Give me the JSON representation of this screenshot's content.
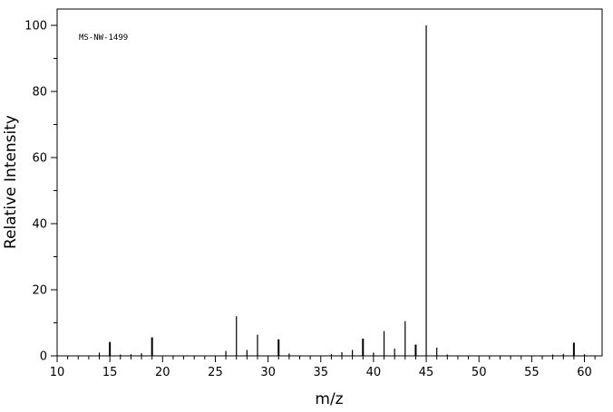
{
  "chart_data": {
    "type": "bar",
    "annotation": "MS-NW-1499",
    "xlabel": "m/z",
    "ylabel": "Relative Intensity",
    "xlim": [
      10,
      62
    ],
    "ylim": [
      0,
      104
    ],
    "x_ticks": [
      10,
      15,
      20,
      25,
      30,
      35,
      40,
      45,
      50,
      55,
      60
    ],
    "y_ticks": [
      0,
      20,
      40,
      60,
      80,
      100
    ],
    "grid": false,
    "peaks": [
      {
        "mz": 14,
        "intensity": 1.0
      },
      {
        "mz": 15,
        "intensity": 4.2
      },
      {
        "mz": 16,
        "intensity": 0.4
      },
      {
        "mz": 17,
        "intensity": 0.5
      },
      {
        "mz": 18,
        "intensity": 0.8
      },
      {
        "mz": 19,
        "intensity": 5.6
      },
      {
        "mz": 26,
        "intensity": 1.5
      },
      {
        "mz": 27,
        "intensity": 12.0
      },
      {
        "mz": 28,
        "intensity": 1.8
      },
      {
        "mz": 29,
        "intensity": 6.4
      },
      {
        "mz": 31,
        "intensity": 5.0
      },
      {
        "mz": 32,
        "intensity": 0.7
      },
      {
        "mz": 36,
        "intensity": 0.5
      },
      {
        "mz": 37,
        "intensity": 1.1
      },
      {
        "mz": 38,
        "intensity": 1.8
      },
      {
        "mz": 39,
        "intensity": 5.2
      },
      {
        "mz": 40,
        "intensity": 1.0
      },
      {
        "mz": 41,
        "intensity": 7.5
      },
      {
        "mz": 42,
        "intensity": 2.2
      },
      {
        "mz": 43,
        "intensity": 10.5
      },
      {
        "mz": 44,
        "intensity": 3.4
      },
      {
        "mz": 45,
        "intensity": 100
      },
      {
        "mz": 46,
        "intensity": 2.5
      },
      {
        "mz": 47,
        "intensity": 0.4
      },
      {
        "mz": 57,
        "intensity": 0.4
      },
      {
        "mz": 58,
        "intensity": 0.6
      },
      {
        "mz": 59,
        "intensity": 4.0
      },
      {
        "mz": 60,
        "intensity": 0.5
      }
    ]
  }
}
